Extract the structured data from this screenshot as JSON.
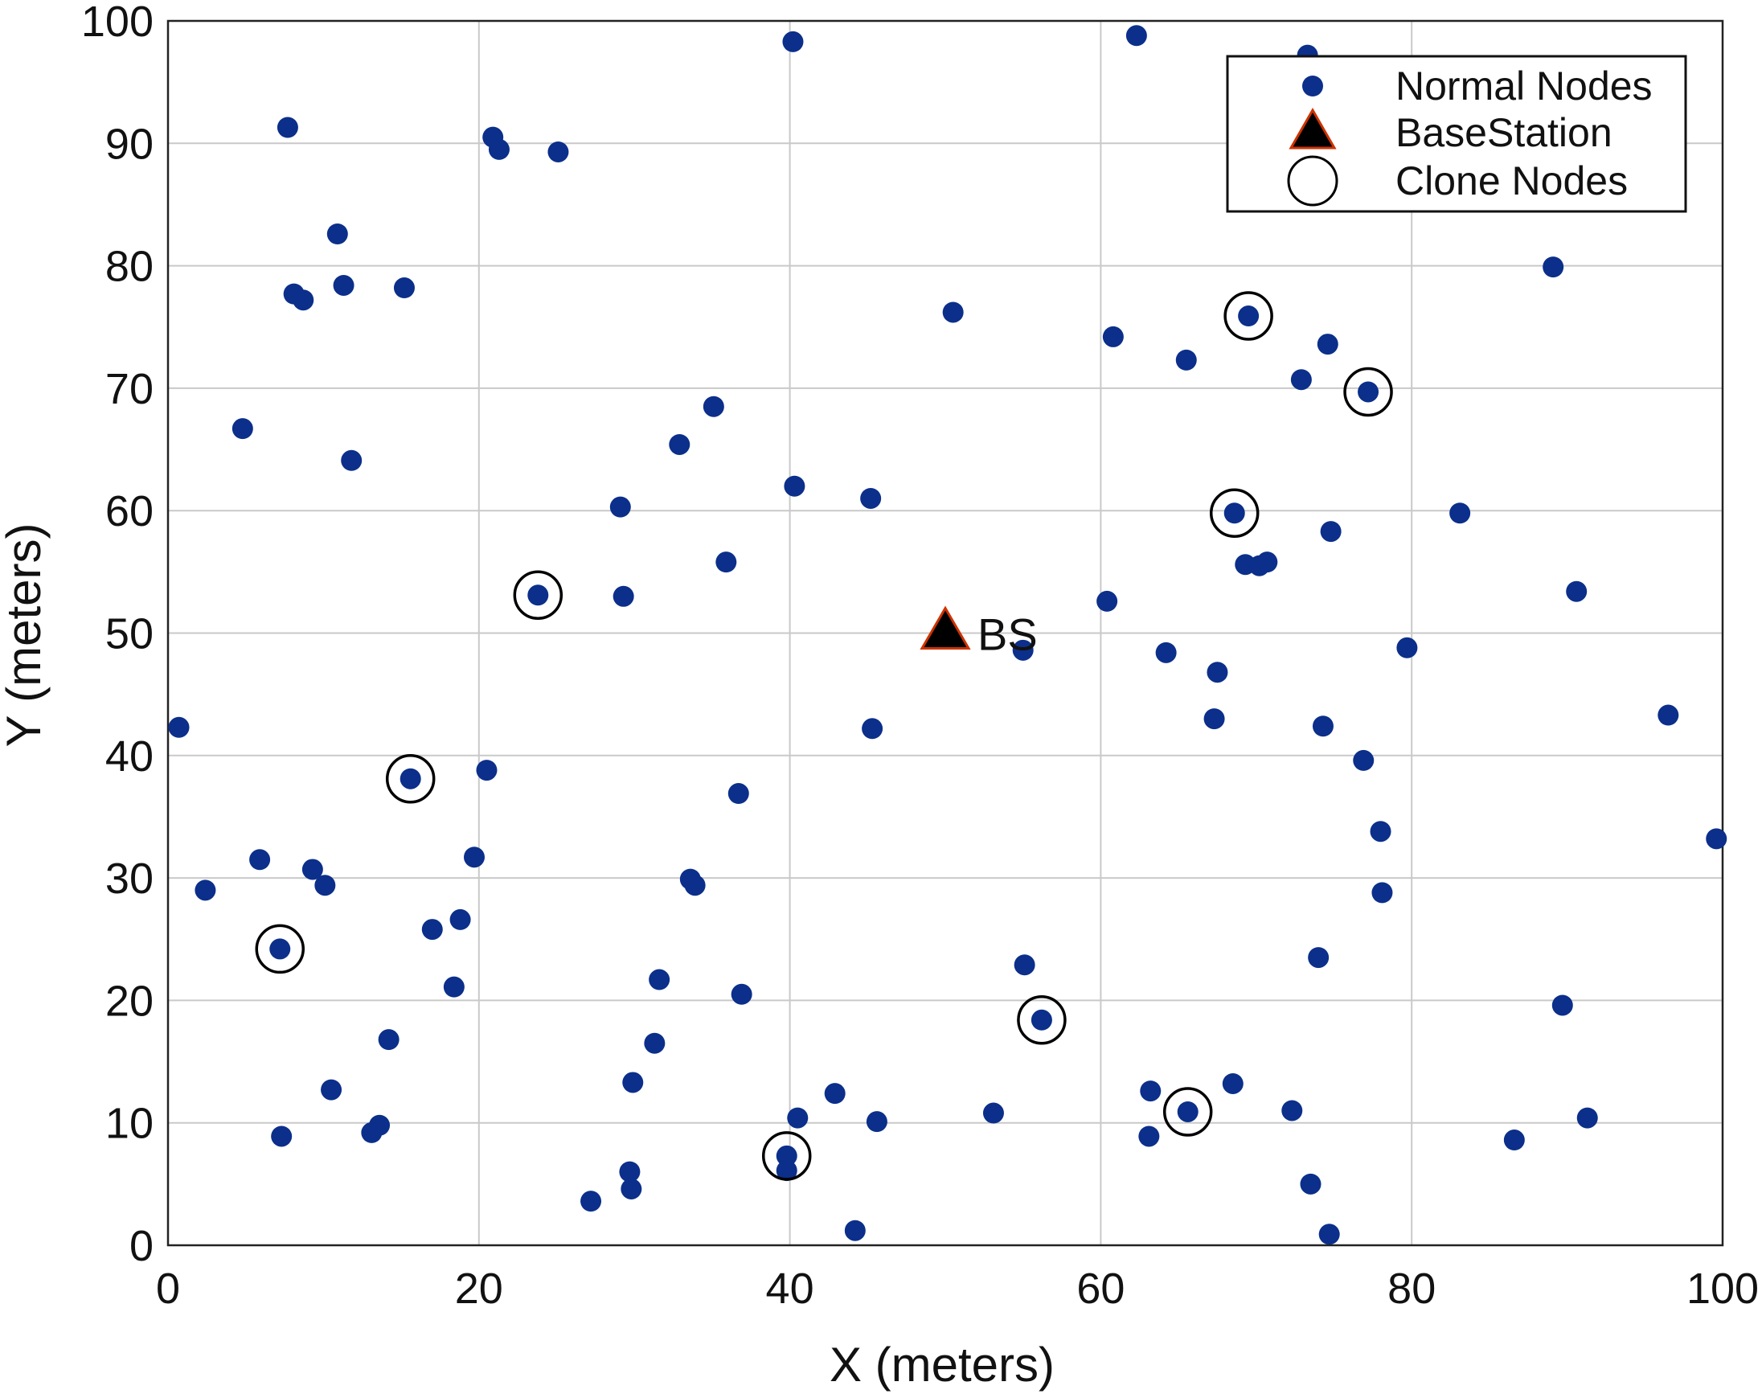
{
  "chart_data": {
    "type": "scatter",
    "xlabel": "X (meters)",
    "ylabel": "Y (meters)",
    "xlim": [
      0,
      100
    ],
    "ylim": [
      0,
      100
    ],
    "x_ticks": [
      "0",
      "20",
      "40",
      "60",
      "80",
      "100"
    ],
    "y_ticks": [
      "0",
      "10",
      "20",
      "30",
      "40",
      "50",
      "60",
      "70",
      "80",
      "90",
      "100"
    ],
    "grid": true,
    "legend": {
      "position": "top-right",
      "entries": [
        "Normal Nodes",
        "BaseStation",
        "Clone Nodes"
      ]
    },
    "colors": {
      "normal": "#0b2f8a",
      "basestation": "#000000",
      "basestation_edge": "#cc3300",
      "clone_ring": "#000000"
    },
    "series": [
      {
        "name": "Normal Nodes",
        "marker": "dot",
        "points": [
          [
            40.2,
            98.3
          ],
          [
            62.3,
            98.8
          ],
          [
            73.3,
            97.2
          ],
          [
            7.7,
            91.3
          ],
          [
            20.9,
            90.5
          ],
          [
            21.3,
            89.5
          ],
          [
            25.1,
            89.3
          ],
          [
            10.9,
            82.6
          ],
          [
            89.1,
            79.9
          ],
          [
            8.1,
            77.7
          ],
          [
            8.7,
            77.2
          ],
          [
            11.3,
            78.4
          ],
          [
            15.2,
            78.2
          ],
          [
            50.5,
            76.2
          ],
          [
            69.5,
            75.9
          ],
          [
            60.8,
            74.2
          ],
          [
            74.6,
            73.6
          ],
          [
            65.5,
            72.3
          ],
          [
            72.9,
            70.7
          ],
          [
            77.2,
            69.7
          ],
          [
            4.8,
            66.7
          ],
          [
            35.1,
            68.5
          ],
          [
            32.9,
            65.4
          ],
          [
            11.8,
            64.1
          ],
          [
            40.3,
            62.0
          ],
          [
            45.2,
            61.0
          ],
          [
            29.1,
            60.3
          ],
          [
            68.6,
            59.8
          ],
          [
            83.1,
            59.8
          ],
          [
            74.8,
            58.3
          ],
          [
            35.9,
            55.8
          ],
          [
            69.3,
            55.6
          ],
          [
            70.2,
            55.5
          ],
          [
            70.7,
            55.8
          ],
          [
            23.8,
            53.1
          ],
          [
            29.3,
            53.0
          ],
          [
            90.6,
            53.4
          ],
          [
            60.4,
            52.6
          ],
          [
            55.0,
            48.6
          ],
          [
            64.2,
            48.4
          ],
          [
            79.7,
            48.8
          ],
          [
            67.5,
            46.8
          ],
          [
            0.7,
            42.3
          ],
          [
            45.3,
            42.2
          ],
          [
            67.3,
            43.0
          ],
          [
            74.3,
            42.4
          ],
          [
            96.5,
            43.3
          ],
          [
            15.6,
            38.1
          ],
          [
            20.5,
            38.8
          ],
          [
            36.7,
            36.9
          ],
          [
            76.9,
            39.6
          ],
          [
            78.0,
            33.8
          ],
          [
            99.6,
            33.2
          ],
          [
            5.9,
            31.5
          ],
          [
            9.3,
            30.7
          ],
          [
            10.1,
            29.4
          ],
          [
            19.7,
            31.7
          ],
          [
            33.6,
            29.9
          ],
          [
            33.9,
            29.4
          ],
          [
            2.4,
            29.0
          ],
          [
            78.1,
            28.8
          ],
          [
            17.0,
            25.8
          ],
          [
            18.8,
            26.6
          ],
          [
            7.2,
            24.2
          ],
          [
            55.1,
            22.9
          ],
          [
            74.0,
            23.5
          ],
          [
            18.4,
            21.1
          ],
          [
            31.6,
            21.7
          ],
          [
            36.9,
            20.5
          ],
          [
            89.7,
            19.6
          ],
          [
            56.2,
            18.4
          ],
          [
            14.2,
            16.8
          ],
          [
            31.3,
            16.5
          ],
          [
            29.9,
            13.3
          ],
          [
            10.5,
            12.7
          ],
          [
            42.9,
            12.4
          ],
          [
            63.2,
            12.6
          ],
          [
            68.5,
            13.2
          ],
          [
            13.6,
            9.8
          ],
          [
            13.1,
            9.2
          ],
          [
            7.3,
            8.9
          ],
          [
            40.5,
            10.4
          ],
          [
            45.6,
            10.1
          ],
          [
            53.1,
            10.8
          ],
          [
            65.6,
            10.9
          ],
          [
            72.3,
            11.0
          ],
          [
            91.3,
            10.4
          ],
          [
            63.1,
            8.9
          ],
          [
            86.6,
            8.6
          ],
          [
            39.8,
            7.3
          ],
          [
            39.8,
            6.1
          ],
          [
            29.7,
            6.0
          ],
          [
            29.8,
            4.6
          ],
          [
            27.2,
            3.6
          ],
          [
            73.5,
            5.0
          ],
          [
            44.2,
            1.2
          ],
          [
            74.7,
            0.9
          ]
        ]
      },
      {
        "name": "BaseStation",
        "marker": "triangle",
        "points": [
          [
            50.0,
            50.0
          ]
        ],
        "label": "BS"
      },
      {
        "name": "Clone Nodes",
        "marker": "ring",
        "points": [
          [
            69.5,
            75.9
          ],
          [
            77.2,
            69.7
          ],
          [
            68.6,
            59.8
          ],
          [
            23.8,
            53.1
          ],
          [
            15.6,
            38.1
          ],
          [
            7.2,
            24.2
          ],
          [
            56.2,
            18.4
          ],
          [
            65.6,
            10.9
          ],
          [
            39.8,
            7.3
          ]
        ]
      }
    ]
  }
}
